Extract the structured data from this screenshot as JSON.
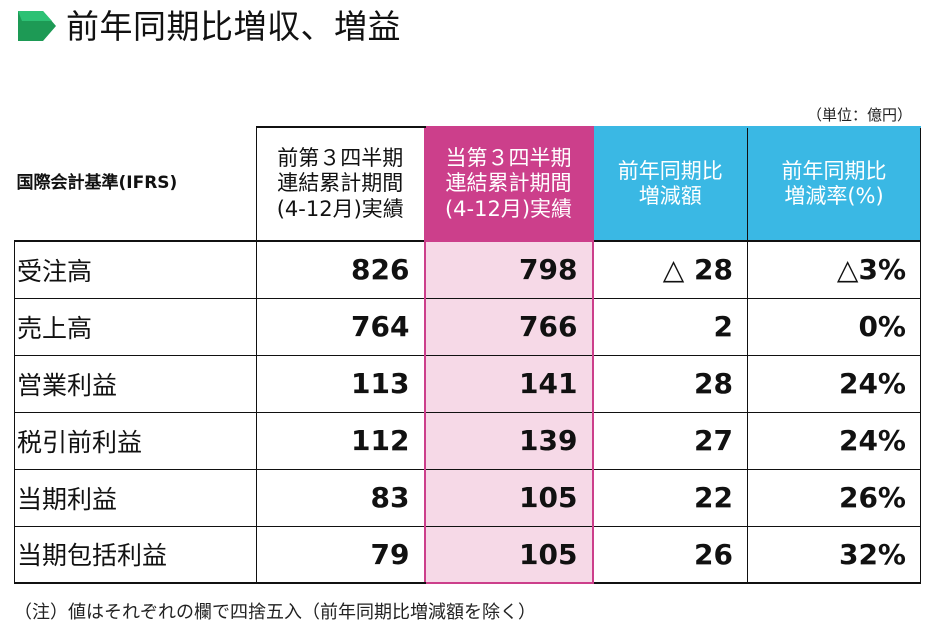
{
  "title": {
    "text": "前年同期比増収、増益",
    "marker_icon": "green-arrow-marker-icon",
    "marker_color": "#1d9a55"
  },
  "unit_label": "（単位：億円）",
  "table": {
    "headers": {
      "basis": "国際会計基準(IFRS)",
      "prev": [
        "前第３四半期",
        "連結累計期間",
        "(4-12月)実績"
      ],
      "curr": [
        "当第３四半期",
        "連結累計期間",
        "(4-12月)実績"
      ],
      "diff": [
        "前年同期比",
        "増減額"
      ],
      "rate": [
        "前年同期比",
        "増減率(%)"
      ]
    },
    "rows": [
      {
        "label": "受注高",
        "prev": "826",
        "curr": "798",
        "diff": "△ 28",
        "rate": "△3%"
      },
      {
        "label": "売上高",
        "prev": "764",
        "curr": "766",
        "diff": "2",
        "rate": "0%"
      },
      {
        "label": "営業利益",
        "prev": "113",
        "curr": "141",
        "diff": "28",
        "rate": "24%"
      },
      {
        "label": "税引前利益",
        "prev": "112",
        "curr": "139",
        "diff": "27",
        "rate": "24%"
      },
      {
        "label": "当期利益",
        "prev": "83",
        "curr": "105",
        "diff": "22",
        "rate": "26%"
      },
      {
        "label": "当期包括利益",
        "prev": "79",
        "curr": "105",
        "diff": "26",
        "rate": "32%"
      }
    ]
  },
  "footnote": "（注）値はそれぞれの欄で四捨五入（前年同期比増減額を除く）",
  "colors": {
    "current_header": "#cc3f8b",
    "current_cells": "#f6d9e7",
    "comparison_header": "#3ab8e4",
    "marker": "#1d9a55"
  }
}
